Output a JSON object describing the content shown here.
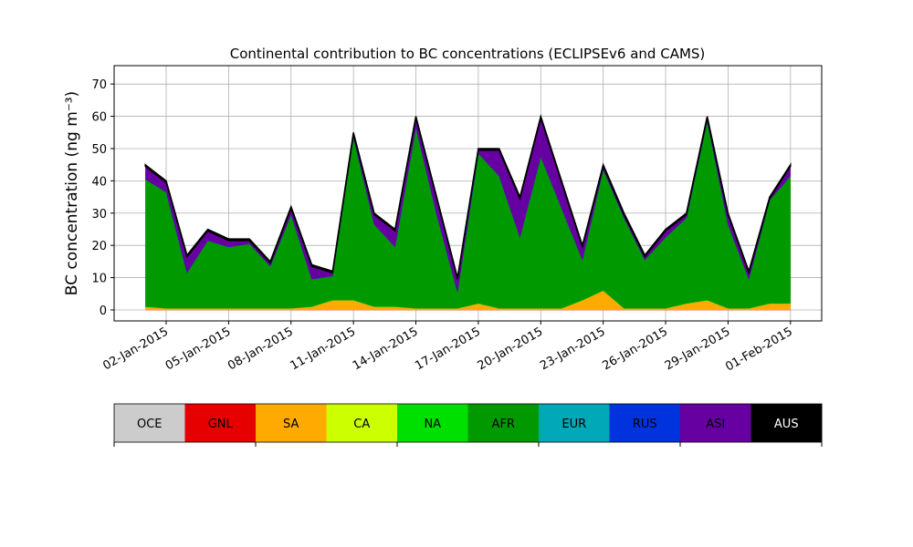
{
  "chart_data": {
    "type": "stacked_area",
    "title": "Continental contribution to BC concentrations (ECLIPSEv6 and CAMS)",
    "y_label": "BC concentration (ng m⁻³)",
    "x": [
      "2015-01-01",
      "2015-01-02",
      "2015-01-03",
      "2015-01-04",
      "2015-01-05",
      "2015-01-06",
      "2015-01-07",
      "2015-01-08",
      "2015-01-09",
      "2015-01-10",
      "2015-01-11",
      "2015-01-12",
      "2015-01-13",
      "2015-01-14",
      "2015-01-15",
      "2015-01-16",
      "2015-01-17",
      "2015-01-18",
      "2015-01-19",
      "2015-01-20",
      "2015-01-21",
      "2015-01-22",
      "2015-01-23",
      "2015-01-24",
      "2015-01-25",
      "2015-01-26",
      "2015-01-27",
      "2015-01-28",
      "2015-01-29",
      "2015-01-30",
      "2015-01-31",
      "2015-02-01"
    ],
    "xlim": [
      "2014-12-30T12:00",
      "2015-02-02T12:00"
    ],
    "xticks": [
      {
        "value": "2015-01-02",
        "label": "02-Jan-2015"
      },
      {
        "value": "2015-01-05",
        "label": "05-Jan-2015"
      },
      {
        "value": "2015-01-08",
        "label": "08-Jan-2015"
      },
      {
        "value": "2015-01-11",
        "label": "11-Jan-2015"
      },
      {
        "value": "2015-01-14",
        "label": "14-Jan-2015"
      },
      {
        "value": "2015-01-17",
        "label": "17-Jan-2015"
      },
      {
        "value": "2015-01-20",
        "label": "20-Jan-2015"
      },
      {
        "value": "2015-01-23",
        "label": "23-Jan-2015"
      },
      {
        "value": "2015-01-26",
        "label": "26-Jan-2015"
      },
      {
        "value": "2015-01-29",
        "label": "29-Jan-2015"
      },
      {
        "value": "2015-02-01",
        "label": "01-Feb-2015"
      }
    ],
    "ylim": [
      -3.4,
      75.7
    ],
    "yticks": [
      0,
      10,
      20,
      30,
      40,
      50,
      60,
      70
    ],
    "grid": true,
    "series": [
      {
        "name": "OCE",
        "color": "#cccccc",
        "values": [
          0,
          0,
          0,
          0,
          0,
          0,
          0,
          0,
          0,
          0,
          0,
          0,
          0,
          0,
          0,
          0,
          0,
          0,
          0,
          0,
          0,
          0,
          0,
          0,
          0,
          0,
          0,
          0,
          0,
          0,
          0,
          0
        ]
      },
      {
        "name": "GNL",
        "color": "#e60000",
        "values": [
          0,
          0,
          0,
          0,
          0,
          0,
          0,
          0,
          0,
          0,
          0,
          0,
          0,
          0,
          0,
          0,
          0,
          0,
          0,
          0,
          0,
          0,
          0,
          0,
          0,
          0,
          0,
          0,
          0,
          0,
          0,
          0
        ]
      },
      {
        "name": "SA",
        "color": "#ffaa00",
        "values": [
          1,
          0.5,
          0.5,
          0.5,
          0.5,
          0.5,
          0.5,
          0.5,
          1,
          3,
          3,
          1,
          1,
          0.5,
          0.5,
          0.5,
          2,
          0.5,
          0.5,
          0.5,
          0.5,
          3,
          6,
          0.5,
          0.5,
          0.5,
          2,
          3,
          0.5,
          0.5,
          2,
          2
        ]
      },
      {
        "name": "CA",
        "color": "#ccff00",
        "values": [
          0,
          0,
          0,
          0,
          0,
          0,
          0,
          0,
          0,
          0,
          0,
          0,
          0,
          0,
          0,
          0,
          0,
          0,
          0,
          0,
          0,
          0,
          0,
          0,
          0,
          0,
          0,
          0,
          0,
          0,
          0,
          0
        ]
      },
      {
        "name": "NA",
        "color": "#00e000",
        "values": [
          0,
          0,
          0,
          0,
          0,
          0,
          0,
          0,
          0,
          0,
          0,
          0,
          0,
          0,
          0,
          0,
          0,
          0,
          0,
          0,
          0,
          0,
          0,
          0,
          0,
          0,
          0,
          0,
          0,
          0,
          0,
          0
        ]
      },
      {
        "name": "AFR",
        "color": "#009900",
        "values": [
          39.5,
          36,
          11,
          21,
          19,
          20,
          13,
          29,
          8.5,
          7.5,
          50.5,
          25.5,
          18.5,
          56,
          29,
          5,
          46.5,
          41,
          22,
          47,
          31,
          12.5,
          37.5,
          28,
          15,
          22,
          26.5,
          55.5,
          26,
          9,
          32,
          39.5
        ]
      },
      {
        "name": "EUR",
        "color": "#00a8b8",
        "values": [
          0,
          0,
          0,
          0,
          0,
          0,
          0,
          0,
          0,
          0,
          0,
          0,
          0,
          0,
          0,
          0,
          0,
          0,
          0,
          0,
          0,
          0,
          0,
          0,
          0,
          0,
          0,
          0,
          0,
          0,
          0,
          0
        ]
      },
      {
        "name": "RUS",
        "color": "#0033dd",
        "values": [
          0,
          0,
          0,
          0,
          0,
          0,
          0,
          0,
          0,
          0,
          0,
          0,
          0,
          0,
          0,
          0,
          0,
          0,
          0,
          0,
          0,
          0,
          0,
          0,
          0,
          0,
          0,
          0,
          0,
          0,
          0,
          0
        ]
      },
      {
        "name": "ASI",
        "color": "#6600a0",
        "values": [
          4,
          3,
          5,
          3,
          2,
          1,
          1,
          2,
          4,
          1,
          1,
          3,
          5,
          3,
          5,
          4,
          1,
          8,
          12,
          12,
          8,
          4,
          1,
          1,
          1,
          2,
          1,
          1,
          3,
          2,
          0.5,
          3
        ]
      },
      {
        "name": "AUS",
        "color": "#000000",
        "values": [
          0.5,
          0.5,
          0.5,
          0.5,
          0.5,
          0.5,
          0.5,
          0.5,
          0.5,
          0.5,
          0.5,
          0.5,
          0.5,
          0.5,
          0.5,
          0.5,
          0.5,
          0.5,
          0.5,
          0.5,
          0.5,
          0.5,
          0.5,
          0.5,
          0.5,
          0.5,
          0.5,
          0.5,
          0.5,
          0.5,
          0.5,
          0.5
        ]
      }
    ]
  }
}
